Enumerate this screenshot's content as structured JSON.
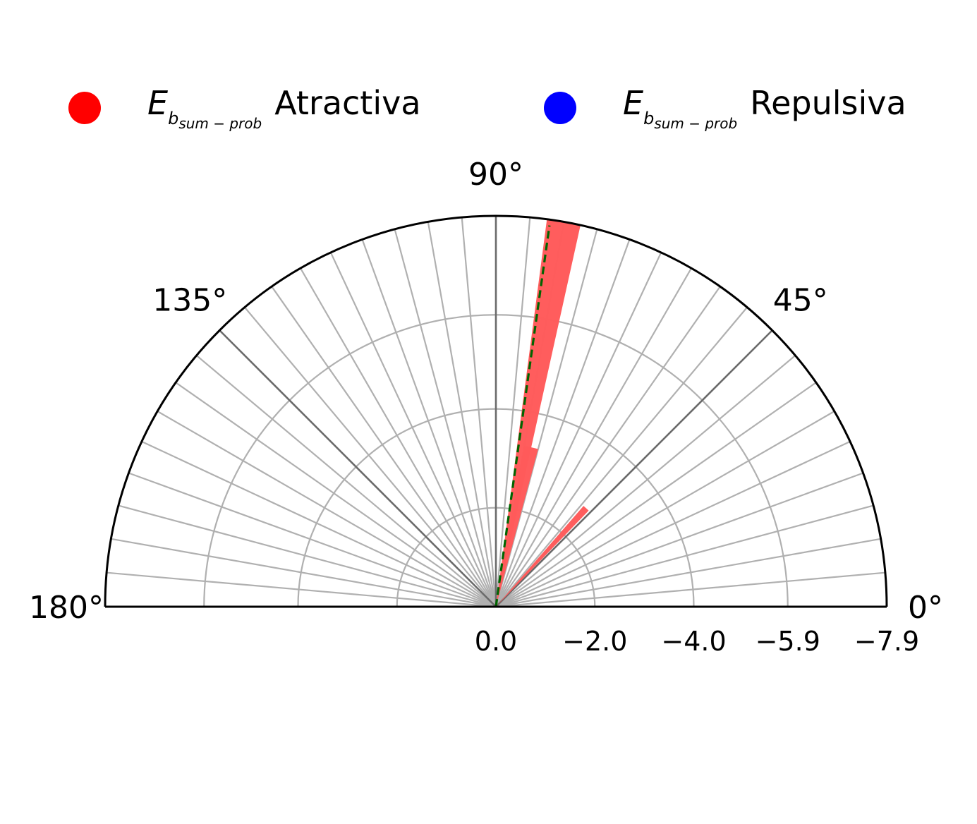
{
  "legend": {
    "items": [
      {
        "symbol": "E",
        "subscript": "b",
        "subsubscript": "sum − prob",
        "label": "Atractiva",
        "color": "#ff0000"
      },
      {
        "symbol": "E",
        "subscript": "b",
        "subsubscript": "sum − prob",
        "label": "Repulsiva",
        "color": "#0000ff"
      }
    ]
  },
  "chart_data": {
    "type": "polar-bar",
    "theta_range_deg": [
      0,
      180
    ],
    "theta_ticks": [
      "0°",
      "45°",
      "90°",
      "135°",
      "180°"
    ],
    "theta_tick_values": [
      0,
      45,
      90,
      135,
      180
    ],
    "radial_ticks": [
      "0.0",
      "−2.0",
      "−4.0",
      "−5.9",
      "−7.9"
    ],
    "radial_tick_values": [
      0.0,
      -2.0,
      -4.0,
      -5.9,
      -7.9
    ],
    "radial_max": -7.9,
    "angular_grid_step_deg": 5,
    "grid": true,
    "bars": [
      {
        "theta_deg": 80,
        "width_deg": 5,
        "value": -7.9,
        "series": "Atractiva",
        "color": "#ff5a5a"
      },
      {
        "theta_deg": 77.5,
        "width_deg": 5,
        "value": -3.3,
        "series": "Atractiva",
        "color": "#ff5a5a"
      },
      {
        "theta_deg": 47.5,
        "width_deg": 3,
        "value": -2.7,
        "series": "Atractiva",
        "color": "#ff5a5a"
      }
    ],
    "reference_line": {
      "theta_deg": 82,
      "value": -7.9,
      "color": "#006400",
      "style": "dashed"
    }
  }
}
